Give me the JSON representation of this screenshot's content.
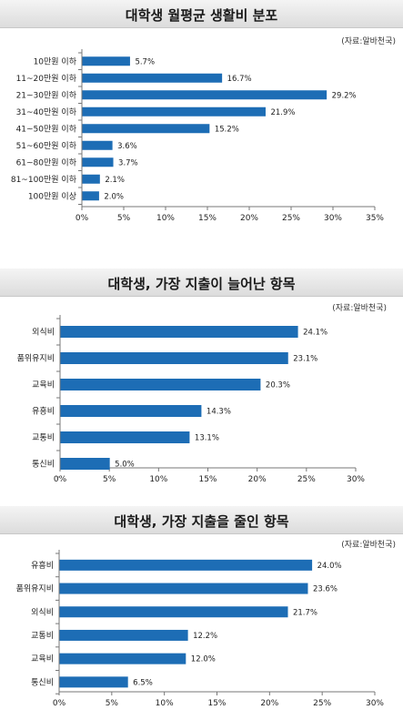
{
  "chart_data": [
    {
      "type": "bar",
      "orientation": "horizontal",
      "title": "대학생 월평균 생활비 분포",
      "source": "(자료:알바천국)",
      "categories": [
        "10만원 이하",
        "11~20만원 이하",
        "21~30만원 이하",
        "31~40만원 이하",
        "41~50만원 이하",
        "51~60만원 이하",
        "61~80만원 이하",
        "81~100만원 이하",
        "100만원 이상"
      ],
      "values": [
        5.7,
        16.7,
        29.2,
        21.9,
        15.2,
        3.6,
        3.7,
        2.1,
        2.0
      ],
      "value_labels": [
        "5.7%",
        "16.7%",
        "29.2%",
        "21.9%",
        "15.2%",
        "3.6%",
        "3.7%",
        "2.1%",
        "2.0%"
      ],
      "xlim": [
        0,
        35
      ],
      "xticks": [
        "0%",
        "5%",
        "10%",
        "15%",
        "20%",
        "25%",
        "30%",
        "35%"
      ],
      "bar_color": "#1d6db5",
      "grid": false
    },
    {
      "type": "bar",
      "orientation": "horizontal",
      "title": "대학생, 가장 지출이 늘어난 항목",
      "source": "(자료:알바천국)",
      "categories": [
        "외식비",
        "품위유지비",
        "교육비",
        "유흥비",
        "교통비",
        "통신비"
      ],
      "values": [
        24.1,
        23.1,
        20.3,
        14.3,
        13.1,
        5.0
      ],
      "value_labels": [
        "24.1%",
        "23.1%",
        "20.3%",
        "14.3%",
        "13.1%",
        "5.0%"
      ],
      "xlim": [
        0,
        30
      ],
      "xticks": [
        "0%",
        "5%",
        "10%",
        "15%",
        "20%",
        "25%",
        "30%"
      ],
      "bar_color": "#1d6db5",
      "grid": false
    },
    {
      "type": "bar",
      "orientation": "horizontal",
      "title": "대학생, 가장 지출을 줄인 항목",
      "source": "(자료:알바천국)",
      "categories": [
        "유흥비",
        "품위유지비",
        "외식비",
        "교통비",
        "교육비",
        "통신비"
      ],
      "values": [
        24.0,
        23.6,
        21.7,
        12.2,
        12.0,
        6.5
      ],
      "value_labels": [
        "24.0%",
        "23.6%",
        "21.7%",
        "12.2%",
        "12.0%",
        "6.5%"
      ],
      "xlim": [
        0,
        30
      ],
      "xticks": [
        "0%",
        "5%",
        "10%",
        "15%",
        "20%",
        "25%",
        "30%"
      ],
      "bar_color": "#1d6db5",
      "grid": false
    }
  ]
}
